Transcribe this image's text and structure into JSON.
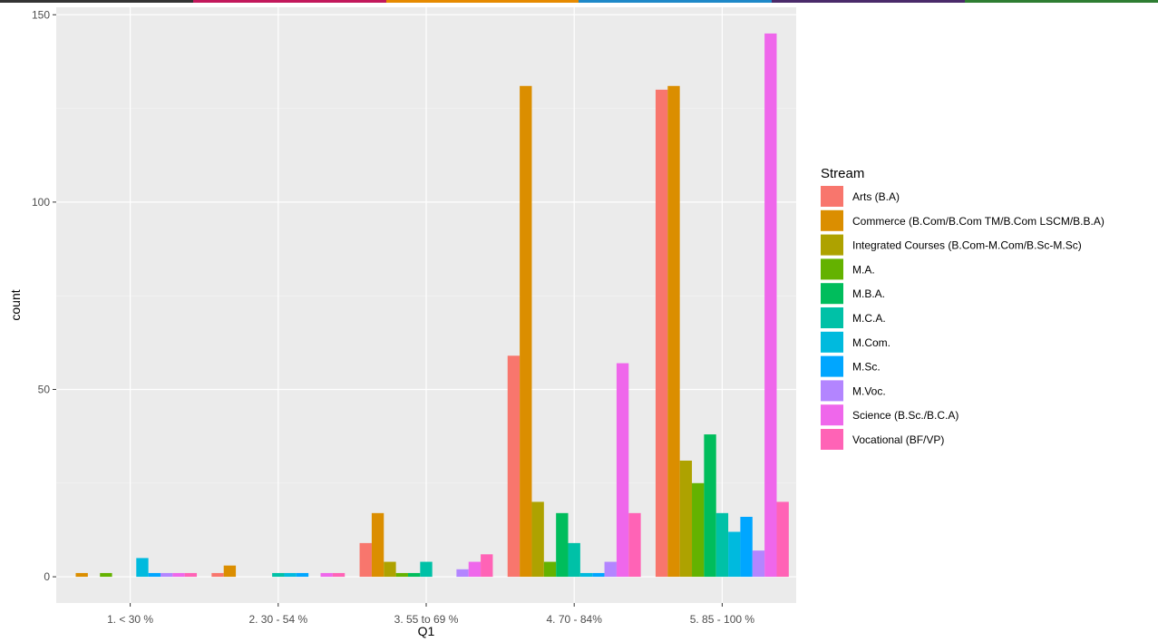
{
  "window_strip_colors": [
    "#333333",
    "#c2185b",
    "#e68a00",
    "#1e88c8",
    "#4a2a6a",
    "#2e7d32"
  ],
  "chart_data": {
    "type": "bar",
    "xlabel": "Q1",
    "ylabel": "count",
    "ylim": [
      -7,
      152
    ],
    "yticks": [
      0,
      50,
      100,
      150
    ],
    "grid": true,
    "legend_position": "right",
    "legend_title": "Stream",
    "categories": [
      "1. < 30 %",
      "2. 30 - 54 %",
      "3. 55 to 69 %",
      "4. 70 - 84%",
      "5. 85 - 100 %"
    ],
    "series": [
      {
        "name": "Arts (B.A)",
        "color": "#F8766D",
        "values": [
          null,
          1,
          9,
          59,
          130
        ]
      },
      {
        "name": "Commerce (B.Com/B.Com TM/B.Com LSCM/B.B.A)",
        "color": "#DB8E00",
        "values": [
          1,
          3,
          17,
          131,
          131
        ]
      },
      {
        "name": "Integrated Courses (B.Com-M.Com/B.Sc-M.Sc)",
        "color": "#AEA200",
        "values": [
          null,
          null,
          4,
          20,
          31
        ]
      },
      {
        "name": "M.A.",
        "color": "#64B200",
        "values": [
          1,
          null,
          1,
          4,
          25
        ]
      },
      {
        "name": "M.B.A.",
        "color": "#00BD5C",
        "values": [
          null,
          null,
          1,
          17,
          38
        ]
      },
      {
        "name": "M.C.A.",
        "color": "#00C1A7",
        "values": [
          null,
          1,
          4,
          9,
          17
        ]
      },
      {
        "name": "M.Com.",
        "color": "#00BADE",
        "values": [
          5,
          1,
          null,
          1,
          12
        ]
      },
      {
        "name": "M.Sc.",
        "color": "#00A6FF",
        "values": [
          1,
          1,
          null,
          1,
          16
        ]
      },
      {
        "name": "M.Voc.",
        "color": "#B385FF",
        "values": [
          1,
          null,
          2,
          4,
          7
        ]
      },
      {
        "name": "Science (B.Sc./B.C.A)",
        "color": "#EF67EB",
        "values": [
          1,
          1,
          4,
          57,
          145
        ]
      },
      {
        "name": "Vocational (BF/VP)",
        "color": "#FF63B6",
        "values": [
          1,
          1,
          6,
          17,
          20
        ]
      }
    ]
  }
}
